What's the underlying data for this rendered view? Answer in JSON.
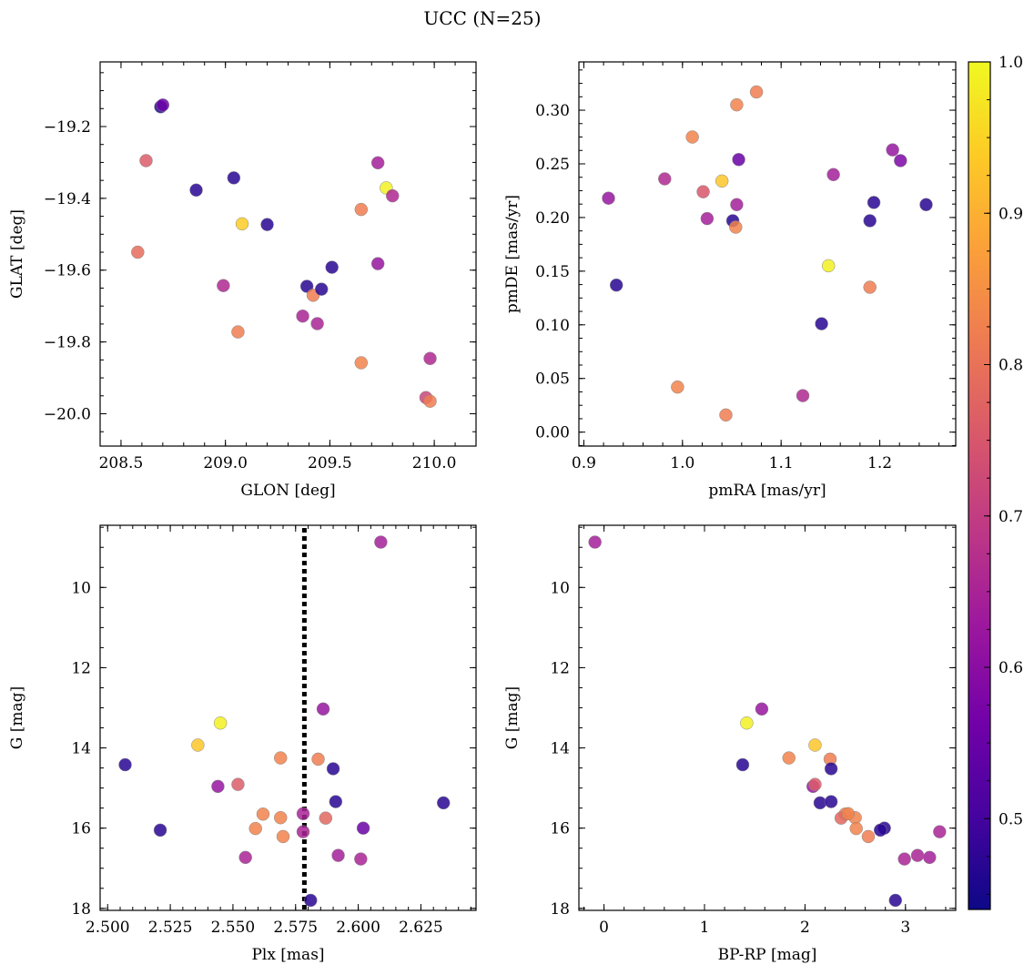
{
  "figure_title": "UCC (N=25)",
  "colorbar": {
    "range": [
      0.44,
      1.0
    ],
    "ticks": [
      0.5,
      0.6,
      0.7,
      0.8,
      0.9,
      1.0
    ],
    "tick_labels": [
      "0.5",
      "0.6",
      "0.7",
      "0.8",
      "0.9",
      "1.0"
    ],
    "colormap": [
      "#0d0887",
      "#46039f",
      "#7201a8",
      "#9c179e",
      "#bd3786",
      "#d8576b",
      "#ed7953",
      "#fb9f3a",
      "#fdca26",
      "#f0f921"
    ]
  },
  "chart_data": [
    {
      "type": "scatter",
      "panel": "sky",
      "xlabel": "GLON [deg]",
      "ylabel": "GLAT [deg]",
      "xlim": [
        208.4,
        210.2
      ],
      "ylim": [
        -20.09,
        -19.02
      ],
      "y_inverted": false,
      "xticks": [
        208.5,
        209.0,
        209.5,
        210.0
      ],
      "xtick_labels": [
        "208.5",
        "209.0",
        "209.5",
        "210.0"
      ],
      "yticks": [
        -20.0,
        -19.8,
        -19.6,
        -19.4,
        -19.2
      ],
      "ytick_labels": [
        "−20.0",
        "−19.8",
        "−19.6",
        "−19.4",
        "−19.2"
      ],
      "x": [
        208.69,
        208.7,
        208.62,
        208.86,
        209.04,
        208.58,
        209.08,
        209.2,
        208.99,
        209.06,
        209.39,
        209.42,
        209.46,
        209.51,
        209.37,
        209.44,
        209.65,
        209.65,
        209.73,
        209.73,
        209.77,
        209.8,
        209.98,
        209.96,
        209.98
      ],
      "y": [
        -19.145,
        -19.14,
        -19.295,
        -19.377,
        -19.343,
        -19.55,
        -19.471,
        -19.473,
        -19.643,
        -19.772,
        -19.645,
        -19.67,
        -19.653,
        -19.592,
        -19.728,
        -19.749,
        -19.431,
        -19.858,
        -19.301,
        -19.582,
        -19.371,
        -19.393,
        -19.846,
        -19.955,
        -19.965
      ],
      "c": [
        0.46,
        0.56,
        0.76,
        0.47,
        0.47,
        0.79,
        0.94,
        0.47,
        0.66,
        0.82,
        0.47,
        0.82,
        0.47,
        0.47,
        0.65,
        0.65,
        0.82,
        0.83,
        0.64,
        0.62,
        0.99,
        0.66,
        0.66,
        0.72,
        0.82
      ]
    },
    {
      "type": "scatter",
      "panel": "proper-motion",
      "xlabel": "pmRA [mas/yr]",
      "ylabel": "pmDE [mas/yr]",
      "xlim": [
        0.895,
        1.277
      ],
      "ylim": [
        -0.013,
        0.345
      ],
      "y_inverted": false,
      "xticks": [
        0.9,
        1.0,
        1.1,
        1.2
      ],
      "xtick_labels": [
        "0.9",
        "1.0",
        "1.1",
        "1.2"
      ],
      "yticks": [
        0.0,
        0.05,
        0.1,
        0.15,
        0.2,
        0.25,
        0.3
      ],
      "ytick_labels": [
        "0.00",
        "0.05",
        "0.10",
        "0.15",
        "0.20",
        "0.25",
        "0.30"
      ],
      "x": [
        1.075,
        1.055,
        1.01,
        0.982,
        1.04,
        1.021,
        1.057,
        1.025,
        1.055,
        1.051,
        1.054,
        0.925,
        0.933,
        1.153,
        1.213,
        1.221,
        1.194,
        1.19,
        1.247,
        1.148,
        1.19,
        1.141,
        0.995,
        1.122,
        1.044
      ],
      "y": [
        0.317,
        0.305,
        0.275,
        0.236,
        0.234,
        0.224,
        0.254,
        0.199,
        0.212,
        0.197,
        0.191,
        0.218,
        0.137,
        0.24,
        0.263,
        0.253,
        0.214,
        0.197,
        0.212,
        0.155,
        0.135,
        0.101,
        0.042,
        0.034,
        0.016
      ],
      "c": [
        0.82,
        0.83,
        0.83,
        0.66,
        0.93,
        0.75,
        0.55,
        0.64,
        0.64,
        0.47,
        0.83,
        0.62,
        0.47,
        0.64,
        0.62,
        0.58,
        0.47,
        0.47,
        0.47,
        0.99,
        0.82,
        0.47,
        0.83,
        0.66,
        0.82
      ]
    },
    {
      "type": "scatter",
      "panel": "parallax",
      "xlabel": "Plx [mas]",
      "ylabel": "G [mag]",
      "xlim": [
        2.497,
        2.647
      ],
      "ylim": [
        18.05,
        8.45
      ],
      "y_inverted": true,
      "xticks": [
        2.5,
        2.525,
        2.55,
        2.575,
        2.6,
        2.625
      ],
      "xtick_labels": [
        "2.500",
        "2.525",
        "2.550",
        "2.575",
        "2.600",
        "2.625"
      ],
      "yticks": [
        10,
        12,
        14,
        16,
        18
      ],
      "ytick_labels": [
        "10",
        "12",
        "14",
        "16",
        "18"
      ],
      "vline": 2.5785,
      "x": [
        2.609,
        2.586,
        2.545,
        2.536,
        2.507,
        2.569,
        2.584,
        2.59,
        2.544,
        2.552,
        2.591,
        2.634,
        2.562,
        2.569,
        2.578,
        2.587,
        2.559,
        2.578,
        2.521,
        2.602,
        2.57,
        2.555,
        2.592,
        2.601,
        2.581
      ],
      "y": [
        8.87,
        13.03,
        13.38,
        13.93,
        14.42,
        14.25,
        14.28,
        14.52,
        14.96,
        14.91,
        15.34,
        15.37,
        15.65,
        15.74,
        15.64,
        15.75,
        16.01,
        16.09,
        16.05,
        16.0,
        16.21,
        16.73,
        16.68,
        16.77,
        17.8
      ],
      "c": [
        0.64,
        0.62,
        0.99,
        0.93,
        0.47,
        0.83,
        0.82,
        0.47,
        0.62,
        0.76,
        0.47,
        0.47,
        0.83,
        0.83,
        0.65,
        0.78,
        0.83,
        0.65,
        0.47,
        0.55,
        0.83,
        0.65,
        0.64,
        0.65,
        0.47
      ]
    },
    {
      "type": "scatter",
      "panel": "cmd",
      "xlabel": "BP-RP [mag]",
      "ylabel": "G [mag]",
      "xlim": [
        -0.25,
        3.5
      ],
      "ylim": [
        18.05,
        8.45
      ],
      "y_inverted": true,
      "xticks": [
        0,
        1,
        2,
        3
      ],
      "xtick_labels": [
        "0",
        "1",
        "2",
        "3"
      ],
      "yticks": [
        10,
        12,
        14,
        16,
        18
      ],
      "ytick_labels": [
        "10",
        "12",
        "14",
        "16",
        "18"
      ],
      "x": [
        -0.09,
        1.57,
        1.42,
        2.1,
        1.38,
        1.84,
        2.25,
        2.26,
        2.08,
        2.1,
        2.15,
        2.26,
        2.4,
        2.5,
        2.36,
        2.43,
        2.51,
        2.79,
        2.75,
        3.34,
        2.63,
        2.99,
        3.12,
        3.24,
        2.9
      ],
      "y": [
        8.87,
        13.03,
        13.38,
        13.93,
        14.42,
        14.25,
        14.28,
        14.52,
        14.96,
        14.91,
        15.37,
        15.34,
        15.65,
        15.74,
        15.75,
        15.64,
        16.01,
        16.0,
        16.05,
        16.09,
        16.21,
        16.77,
        16.68,
        16.73,
        17.8
      ],
      "c": [
        0.64,
        0.62,
        0.99,
        0.93,
        0.47,
        0.83,
        0.82,
        0.47,
        0.62,
        0.76,
        0.47,
        0.47,
        0.83,
        0.83,
        0.78,
        0.83,
        0.83,
        0.47,
        0.47,
        0.65,
        0.82,
        0.65,
        0.65,
        0.64,
        0.47
      ]
    }
  ]
}
